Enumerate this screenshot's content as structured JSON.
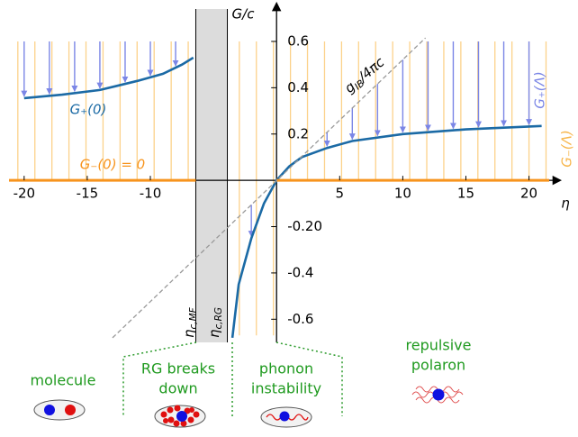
{
  "chart_data": {
    "type": "line",
    "x_label": "η",
    "y_label": "G/c",
    "xlim": [
      -21.2,
      21.6
    ],
    "ylim": [
      -0.7,
      0.74
    ],
    "xticks": [
      -20,
      -15,
      -10,
      5,
      10,
      15,
      20
    ],
    "yticks": [
      0.6,
      0.4,
      0.2,
      {
        "value": -0.2,
        "label": "-0.20"
      },
      -0.4,
      -0.6
    ],
    "shaded_region": [
      -6.4,
      -3.9
    ],
    "series": [
      {
        "name": "G₊(0)",
        "color": "#1b6aa5",
        "x": [
          -20,
          -17,
          -14,
          -11,
          -9,
          -7.5,
          -6.6,
          -5,
          -3.5,
          -3,
          -2,
          -1,
          0,
          1,
          2,
          4,
          6,
          10,
          15,
          21
        ],
        "values": [
          0.355,
          0.37,
          0.39,
          0.43,
          0.46,
          0.5,
          0.53,
          null,
          -0.68,
          -0.45,
          -0.25,
          -0.1,
          0,
          0.06,
          0.1,
          0.14,
          0.17,
          0.2,
          0.22,
          0.235
        ]
      },
      {
        "name": "G₋(0) = 0",
        "color": "#f7941d",
        "x": [
          -21.2,
          -6.4,
          -3,
          0,
          21.6
        ],
        "values": [
          0,
          0,
          null,
          0,
          0
        ]
      },
      {
        "name": {
          "main": "g",
          "sub": "IB",
          "rest": "/4πc"
        },
        "color": "#999999",
        "x": [
          -13,
          11.8
        ],
        "values": [
          -0.68,
          0.615
        ]
      }
    ],
    "annotations": {
      "flow_plus": "G₊(Λ)",
      "flow_minus": "G₋(Λ)",
      "eta_mf": {
        "main": "η",
        "sub": "c,MF"
      },
      "eta_rg": {
        "main": "η",
        "sub": "c,RG"
      }
    },
    "regimes": [
      {
        "lines": [
          "molecule"
        ]
      },
      {
        "lines": [
          "RG breaks",
          "down"
        ]
      },
      {
        "lines": [
          "phonon",
          "instability"
        ]
      },
      {
        "lines": [
          "repulsive",
          "polaron"
        ]
      }
    ]
  }
}
